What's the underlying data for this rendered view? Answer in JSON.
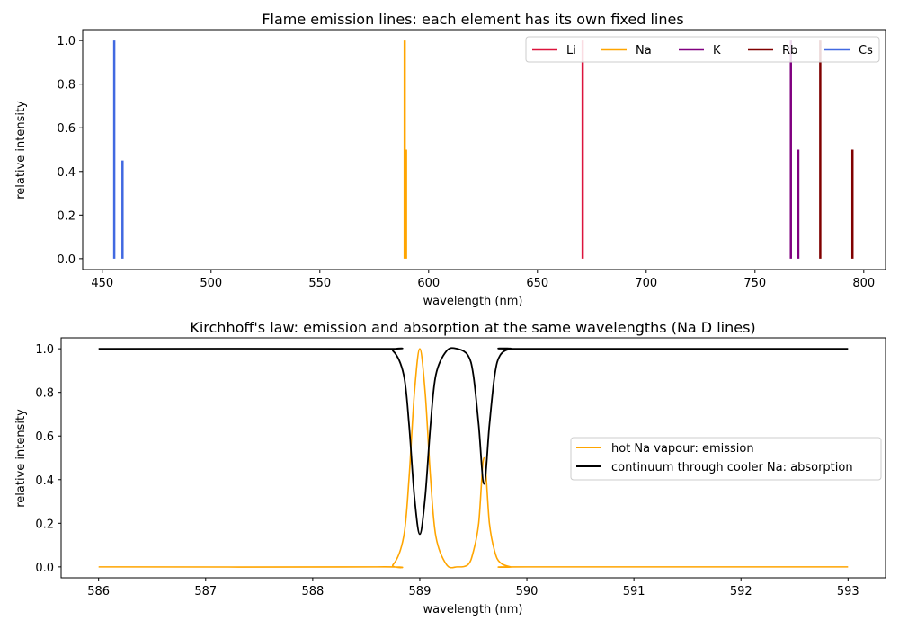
{
  "chart_data": [
    {
      "type": "line",
      "title": "Flame emission lines: each element has its own fixed lines",
      "xlabel": "wavelength (nm)",
      "ylabel": "relative intensity",
      "xlim": [
        441,
        810
      ],
      "ylim": [
        -0.05,
        1.05
      ],
      "xticks": [
        450,
        500,
        550,
        600,
        650,
        700,
        750,
        800
      ],
      "yticks": [
        0.0,
        0.2,
        0.4,
        0.6,
        0.8,
        1.0
      ],
      "grid": false,
      "legend": {
        "placement": "top-right",
        "columns": 5
      },
      "series": [
        {
          "name": "Li",
          "color": "#dc143c",
          "lines": [
            {
              "x": 670.8,
              "y": 1.0
            }
          ]
        },
        {
          "name": "Na",
          "color": "#ffa500",
          "lines": [
            {
              "x": 589.0,
              "y": 1.0
            },
            {
              "x": 589.6,
              "y": 0.5
            }
          ]
        },
        {
          "name": "K",
          "color": "#800080",
          "lines": [
            {
              "x": 766.5,
              "y": 1.0
            },
            {
              "x": 769.9,
              "y": 0.5
            }
          ]
        },
        {
          "name": "Rb",
          "color": "#800000",
          "lines": [
            {
              "x": 780.0,
              "y": 1.0
            },
            {
              "x": 794.8,
              "y": 0.5
            }
          ]
        },
        {
          "name": "Cs",
          "color": "#4169e1",
          "lines": [
            {
              "x": 455.5,
              "y": 1.0
            },
            {
              "x": 459.3,
              "y": 0.45
            }
          ]
        }
      ]
    },
    {
      "type": "line",
      "title": "Kirchhoff's law: emission and absorption at the same wavelengths (Na D lines)",
      "xlabel": "wavelength (nm)",
      "ylabel": "relative intensity",
      "xlim": [
        585.65,
        593.35
      ],
      "ylim": [
        -0.05,
        1.05
      ],
      "xticks": [
        586,
        587,
        588,
        589,
        590,
        591,
        592,
        593
      ],
      "yticks": [
        0.0,
        0.2,
        0.4,
        0.6,
        0.8,
        1.0
      ],
      "grid": false,
      "legend": {
        "placement": "center-right",
        "columns": 1
      },
      "series": [
        {
          "name": "hot Na vapour: emission",
          "color": "#ffa500",
          "x": [
            586.0,
            588.6,
            588.75,
            588.85,
            588.9,
            588.95,
            589.0,
            589.05,
            589.1,
            589.15,
            589.25,
            589.35,
            589.45,
            589.5,
            589.55,
            589.6,
            589.65,
            589.7,
            589.75,
            589.85,
            590.0,
            593.0
          ],
          "y": [
            0.0,
            0.0,
            0.01,
            0.14,
            0.41,
            0.8,
            1.0,
            0.8,
            0.41,
            0.14,
            0.01,
            0.0,
            0.01,
            0.07,
            0.2,
            0.5,
            0.2,
            0.07,
            0.02,
            0.0,
            0.0,
            0.0
          ]
        },
        {
          "name": "continuum through cooler Na: absorption",
          "color": "#000000",
          "x": [
            586.0,
            588.6,
            588.75,
            588.85,
            588.9,
            588.95,
            589.0,
            589.05,
            589.1,
            589.15,
            589.25,
            589.35,
            589.45,
            589.5,
            589.55,
            589.6,
            589.65,
            589.7,
            589.75,
            589.85,
            590.0,
            593.0
          ],
          "y": [
            1.0,
            1.0,
            0.99,
            0.88,
            0.65,
            0.32,
            0.15,
            0.32,
            0.65,
            0.88,
            0.99,
            1.0,
            0.97,
            0.88,
            0.65,
            0.38,
            0.65,
            0.88,
            0.97,
            1.0,
            1.0,
            1.0
          ]
        }
      ]
    }
  ]
}
